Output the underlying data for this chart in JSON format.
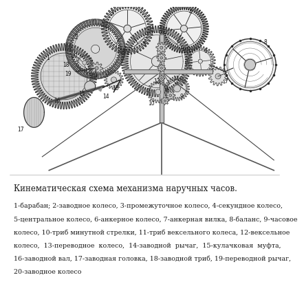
{
  "title": "Кинематическая схема механизма наручных часов.",
  "caption_lines": [
    "1-барабан; 2-заводное колесо, 3-промежуточное колесо, 4-секундное колесо,",
    "5-центральное колесо, 6-анкерное колесо, 7-анкерная вилка, 8-баланс, 9-часовое",
    "колесо, 10-триб минутной стрелки, 11-триб вексельного колеса, 12-вексельное",
    "колесо,  13-переводное  колесо,  14-заводной  рычаг,  15-кулачковая  муфта,",
    "16-заводной вал, 17-заводная головка, 18-заводной триб, 19-переводной рычаг,",
    "20-заводное колесо"
  ],
  "bg_color": "#ffffff",
  "text_color": "#1a1a1a",
  "title_fontsize": 8.5,
  "caption_fontsize": 6.8,
  "gear_color": "#2a2a2a",
  "fill_light": "#e8e8e8",
  "fill_medium": "#d0d0d0",
  "fill_dark": "#b8b8b8"
}
